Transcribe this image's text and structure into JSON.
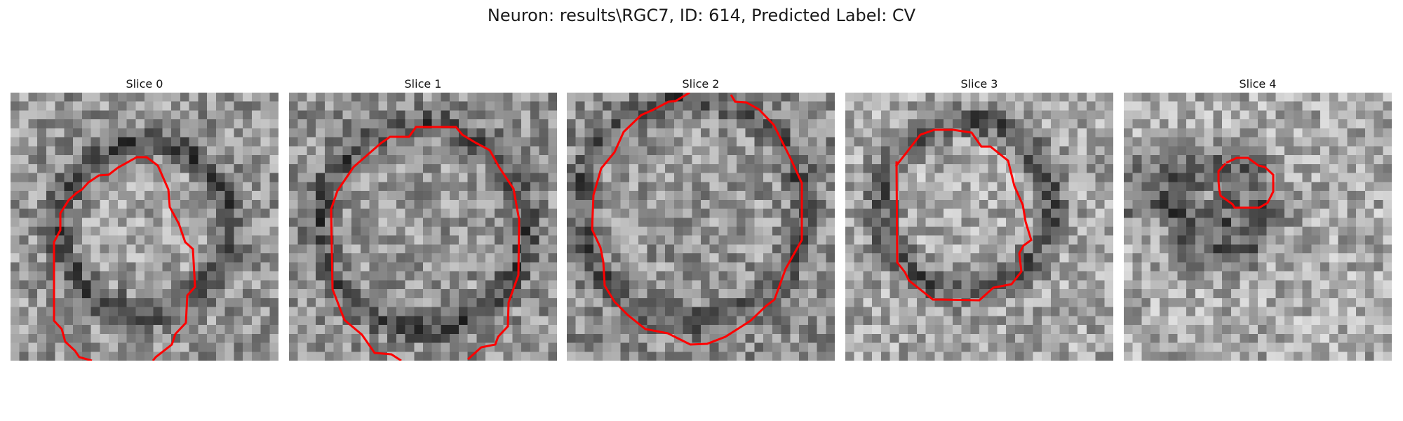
{
  "figure": {
    "title": "Neuron: results\\RGC7, ID: 614, Predicted Label: CV"
  },
  "panels": [
    {
      "title": "Slice 0"
    },
    {
      "title": "Slice 1"
    },
    {
      "title": "Slice 2"
    },
    {
      "title": "Slice 3"
    },
    {
      "title": "Slice 4"
    }
  ],
  "colors": {
    "contour": "#ff0000",
    "background": "#ffffff"
  }
}
